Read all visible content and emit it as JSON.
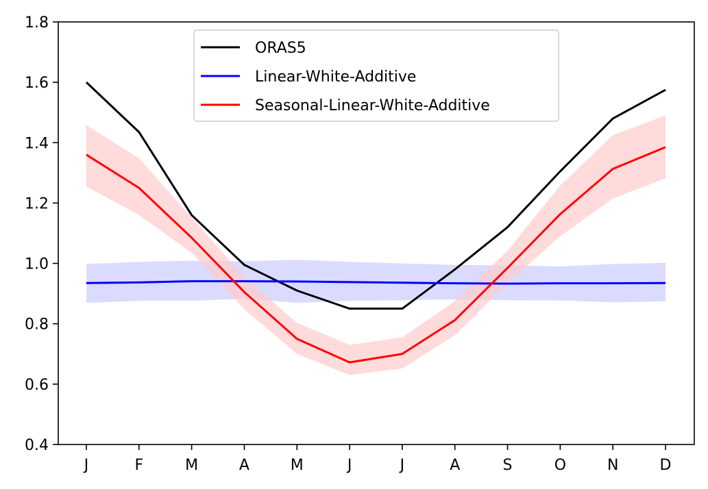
{
  "chart_data": {
    "type": "line",
    "categories": [
      "J",
      "F",
      "M",
      "A",
      "M",
      "J",
      "J",
      "A",
      "S",
      "O",
      "N",
      "D"
    ],
    "ylim": [
      0.4,
      1.8
    ],
    "yticks": [
      "0.4",
      "0.6",
      "0.8",
      "1.0",
      "1.2",
      "1.4",
      "1.6",
      "1.8"
    ],
    "grid": false,
    "legend_position": "upper-center",
    "series": [
      {
        "name": "ORAS5",
        "color": "#000000",
        "values": [
          1.6,
          1.435,
          1.16,
          0.995,
          0.91,
          0.85,
          0.85,
          0.98,
          1.12,
          1.305,
          1.48,
          1.575
        ]
      },
      {
        "name": "Linear-White-Additive",
        "color": "#0000ff",
        "band_color": "#ccccff",
        "values": [
          0.935,
          0.937,
          0.941,
          0.941,
          0.94,
          0.938,
          0.936,
          0.934,
          0.933,
          0.934,
          0.934,
          0.935
        ],
        "band_low": [
          0.869,
          0.876,
          0.876,
          0.883,
          0.869,
          0.876,
          0.878,
          0.881,
          0.878,
          0.877,
          0.871,
          0.874
        ],
        "band_high": [
          0.998,
          1.005,
          1.009,
          1.007,
          1.012,
          1.005,
          1.0,
          0.995,
          0.993,
          0.99,
          0.998,
          1.002
        ]
      },
      {
        "name": "Seasonal-Linear-White-Additive",
        "color": "#ff0000",
        "band_color": "#ffcccc",
        "values": [
          1.36,
          1.25,
          1.085,
          0.905,
          0.75,
          0.672,
          0.7,
          0.812,
          0.985,
          1.163,
          1.313,
          1.385
        ],
        "band_low": [
          1.255,
          1.16,
          1.035,
          0.848,
          0.7,
          0.63,
          0.652,
          0.762,
          0.935,
          1.09,
          1.215,
          1.282
        ],
        "band_high": [
          1.458,
          1.348,
          1.152,
          0.955,
          0.803,
          0.73,
          0.755,
          0.875,
          1.042,
          1.258,
          1.425,
          1.49
        ]
      }
    ]
  }
}
